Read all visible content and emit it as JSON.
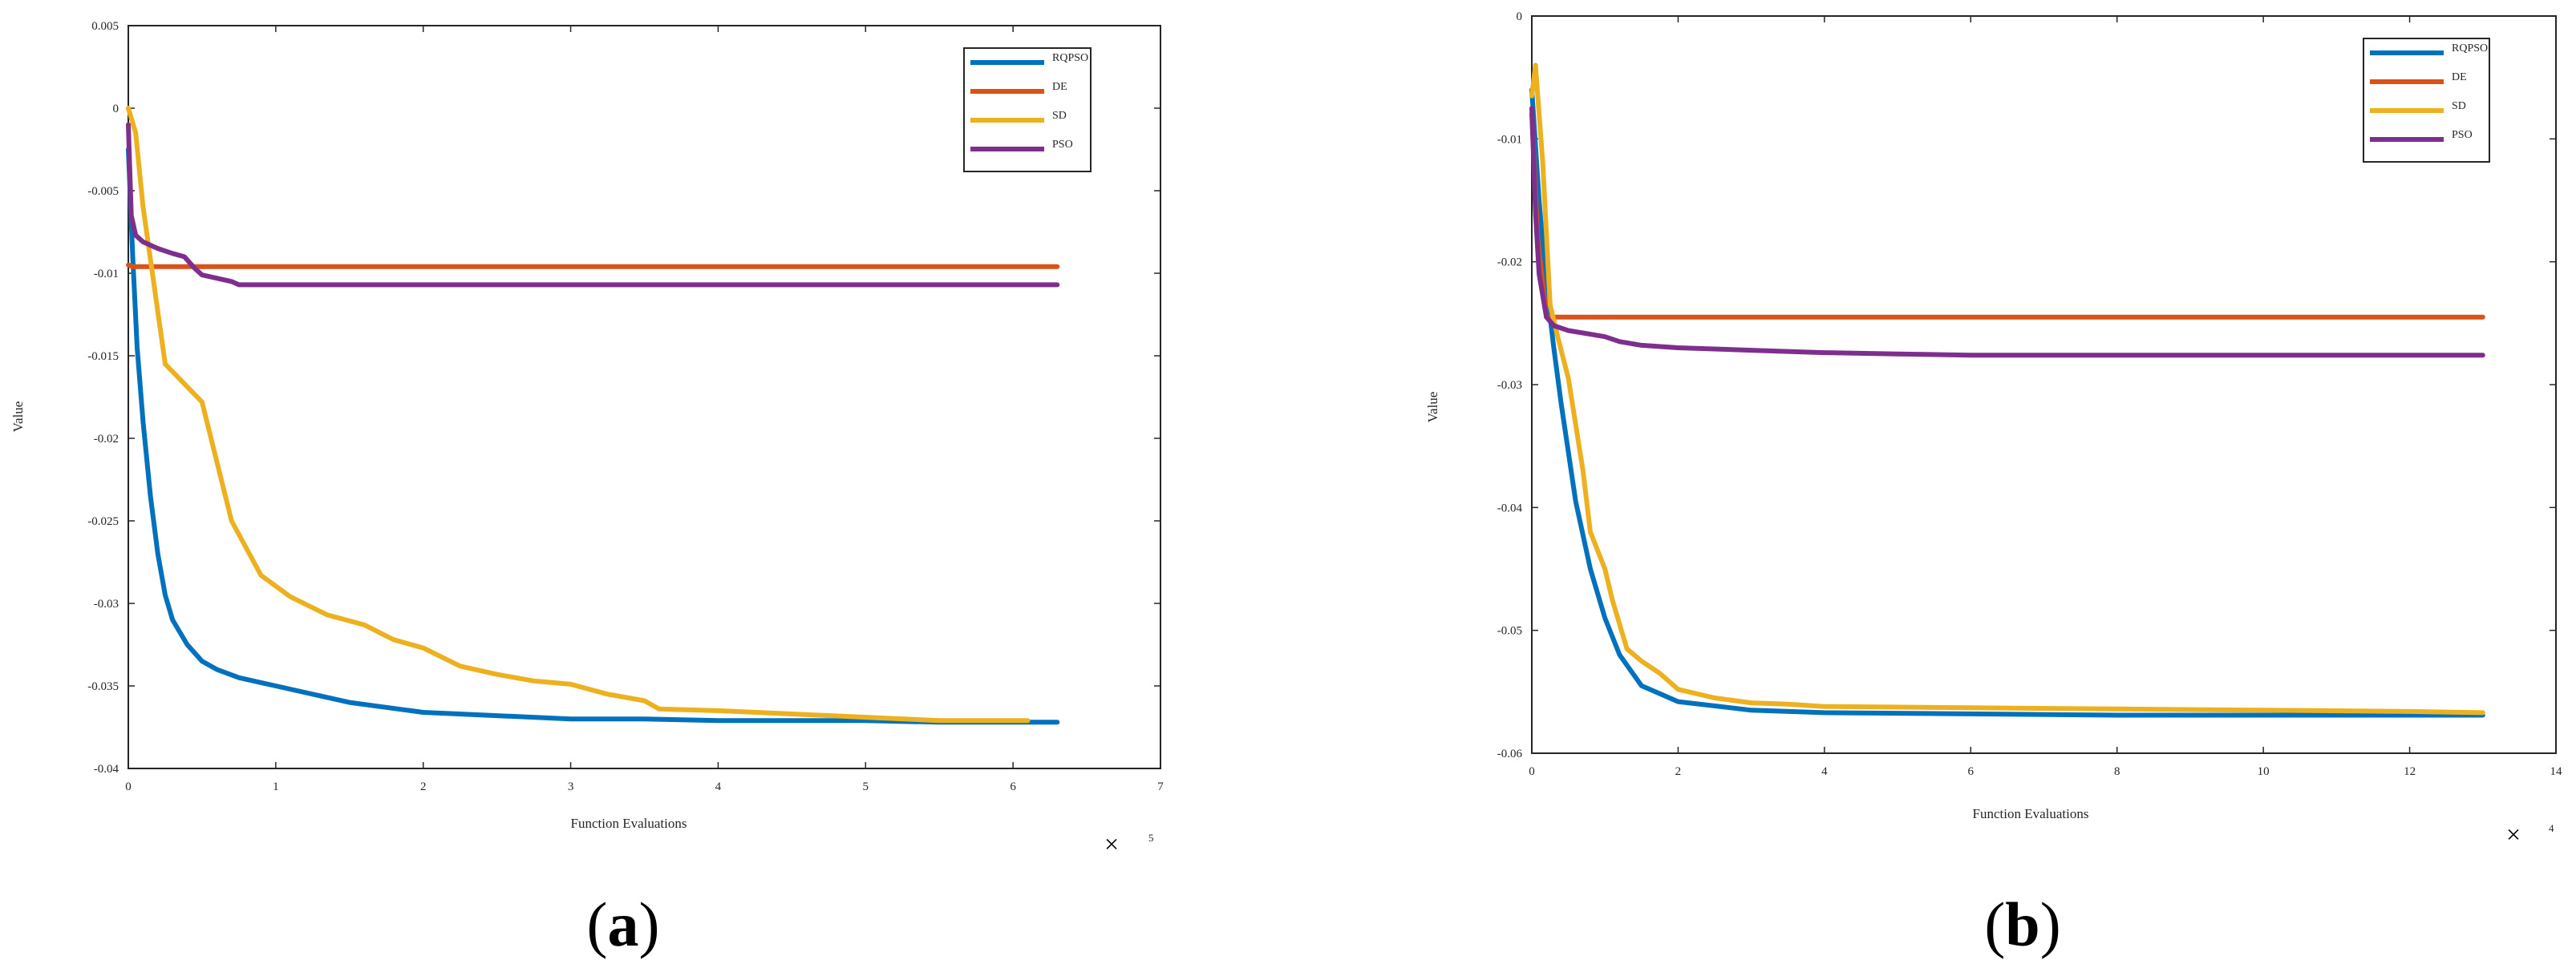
{
  "charts": [
    {
      "panel_label": {
        "open": "(",
        "letter": "a",
        "close": ")"
      },
      "xlabel": "Function Evaluations",
      "ylabel": "Value",
      "multiplier": {
        "sign": "×",
        "exponent": "5"
      },
      "chart_data": {
        "type": "line",
        "xlim": [
          0,
          7
        ],
        "ylim": [
          -0.04,
          0.005
        ],
        "xticks": [
          0,
          1,
          2,
          3,
          4,
          5,
          6,
          7
        ],
        "xtick_labels": [
          "0",
          "1",
          "2",
          "3",
          "4",
          "5",
          "6",
          "7"
        ],
        "yticks": [
          0.005,
          0,
          -0.005,
          -0.01,
          -0.015,
          -0.02,
          -0.025,
          -0.03,
          -0.035,
          -0.04
        ],
        "ytick_labels": [
          "0.005",
          "0",
          "-0.005",
          "-0.01",
          "-0.015",
          "-0.02",
          "-0.025",
          "-0.03",
          "-0.035",
          "-0.04"
        ],
        "x_scale_note": "x values in units of 10^5 function evaluations",
        "grid": false,
        "legend_position": "top-right",
        "series": [
          {
            "name": "RQPSO",
            "color": "#0072BD",
            "x": [
              0,
              0.03,
              0.06,
              0.1,
              0.15,
              0.2,
              0.25,
              0.3,
              0.4,
              0.5,
              0.6,
              0.75,
              0.9,
              1.0,
              1.25,
              1.5,
              1.75,
              2.0,
              2.5,
              3.0,
              3.5,
              4.0,
              4.5,
              5.0,
              5.5,
              6.0,
              6.3
            ],
            "y": [
              -0.0025,
              -0.009,
              -0.0145,
              -0.019,
              -0.0235,
              -0.027,
              -0.0295,
              -0.031,
              -0.0325,
              -0.0335,
              -0.034,
              -0.0345,
              -0.0348,
              -0.035,
              -0.0355,
              -0.036,
              -0.0363,
              -0.0366,
              -0.0368,
              -0.037,
              -0.037,
              -0.0371,
              -0.0371,
              -0.0371,
              -0.0372,
              -0.0372,
              -0.0372
            ]
          },
          {
            "name": "DE",
            "color": "#D95319",
            "x": [
              0,
              0.03,
              6.3
            ],
            "y": [
              -0.0095,
              -0.0096,
              -0.0096
            ]
          },
          {
            "name": "SD",
            "color": "#EDB120",
            "x": [
              0,
              0.05,
              0.1,
              0.25,
              0.5,
              0.7,
              0.9,
              1.1,
              1.35,
              1.6,
              1.8,
              2.0,
              2.25,
              2.5,
              2.75,
              3.0,
              3.25,
              3.5,
              3.6,
              4.0,
              4.5,
              5.0,
              5.5,
              6.0,
              6.1
            ],
            "y": [
              0,
              -0.0015,
              -0.006,
              -0.0155,
              -0.0178,
              -0.025,
              -0.0283,
              -0.0296,
              -0.0307,
              -0.0313,
              -0.0322,
              -0.0327,
              -0.0338,
              -0.0343,
              -0.0347,
              -0.0349,
              -0.0355,
              -0.0359,
              -0.0364,
              -0.0365,
              -0.0367,
              -0.0369,
              -0.0371,
              -0.0371,
              -0.0371
            ]
          },
          {
            "name": "PSO",
            "color": "#7E2F8E",
            "x": [
              0,
              0.02,
              0.05,
              0.1,
              0.2,
              0.3,
              0.38,
              0.45,
              0.5,
              0.6,
              0.7,
              0.75,
              1.0,
              2.0,
              4.0,
              6.3
            ],
            "y": [
              -0.001,
              -0.0065,
              -0.0077,
              -0.0081,
              -0.0085,
              -0.0088,
              -0.009,
              -0.0097,
              -0.0101,
              -0.0103,
              -0.0105,
              -0.0107,
              -0.0107,
              -0.0107,
              -0.0107,
              -0.0107
            ]
          }
        ]
      }
    },
    {
      "panel_label": {
        "open": "(",
        "letter": "b",
        "close": ")"
      },
      "xlabel": "Function Evaluations",
      "ylabel": "Value",
      "multiplier": {
        "sign": "×",
        "exponent": "4"
      },
      "chart_data": {
        "type": "line",
        "xlim": [
          0,
          14
        ],
        "ylim": [
          -0.06,
          0
        ],
        "xticks": [
          0,
          2,
          4,
          6,
          8,
          10,
          12,
          14
        ],
        "xtick_labels": [
          "0",
          "2",
          "4",
          "6",
          "8",
          "10",
          "12",
          "14"
        ],
        "yticks": [
          0,
          -0.01,
          -0.02,
          -0.03,
          -0.04,
          -0.05,
          -0.06
        ],
        "ytick_labels": [
          "0",
          "-0.01",
          "-0.02",
          "-0.03",
          "-0.04",
          "-0.05",
          "-0.06"
        ],
        "x_scale_note": "x values in units of 10^4 function evaluations",
        "grid": false,
        "legend_position": "top-right",
        "series": [
          {
            "name": "RQPSO",
            "color": "#0072BD",
            "x": [
              0,
              0.1,
              0.2,
              0.3,
              0.4,
              0.5,
              0.6,
              0.8,
              1.0,
              1.2,
              1.5,
              2.0,
              3.0,
              4.0,
              6.0,
              8.0,
              10.0,
              12.0,
              13.0
            ],
            "y": [
              -0.006,
              -0.015,
              -0.022,
              -0.027,
              -0.0315,
              -0.0355,
              -0.0395,
              -0.045,
              -0.049,
              -0.052,
              -0.0545,
              -0.0558,
              -0.0565,
              -0.0567,
              -0.0568,
              -0.0569,
              -0.0569,
              -0.0569,
              -0.0569
            ]
          },
          {
            "name": "DE",
            "color": "#D95319",
            "x": [
              0,
              0.08,
              0.2,
              13.0
            ],
            "y": [
              -0.008,
              -0.018,
              -0.0245,
              -0.0245
            ]
          },
          {
            "name": "SD",
            "color": "#EDB120",
            "x": [
              0,
              0.05,
              0.15,
              0.25,
              0.35,
              0.5,
              0.7,
              0.8,
              1.0,
              1.1,
              1.3,
              1.5,
              1.75,
              2.0,
              2.5,
              3.0,
              3.5,
              4.0,
              6.0,
              8.0,
              10.0,
              12.0,
              13.0
            ],
            "y": [
              -0.0065,
              -0.004,
              -0.012,
              -0.0235,
              -0.026,
              -0.0295,
              -0.037,
              -0.042,
              -0.045,
              -0.0475,
              -0.0515,
              -0.0525,
              -0.0535,
              -0.0548,
              -0.0555,
              -0.0559,
              -0.056,
              -0.0562,
              -0.0563,
              -0.0564,
              -0.0565,
              -0.0566,
              -0.0567
            ]
          },
          {
            "name": "PSO",
            "color": "#7E2F8E",
            "x": [
              0,
              0.05,
              0.1,
              0.2,
              0.3,
              0.5,
              0.8,
              1.0,
              1.2,
              1.5,
              2.0,
              3.0,
              4.0,
              5.0,
              6.0,
              8.0,
              10.0,
              12.0,
              13.0
            ],
            "y": [
              -0.0075,
              -0.016,
              -0.021,
              -0.0245,
              -0.0252,
              -0.0256,
              -0.0259,
              -0.0261,
              -0.0265,
              -0.0268,
              -0.027,
              -0.0272,
              -0.0274,
              -0.0275,
              -0.0276,
              -0.0276,
              -0.0276,
              -0.0276,
              -0.0276
            ]
          }
        ]
      }
    }
  ]
}
